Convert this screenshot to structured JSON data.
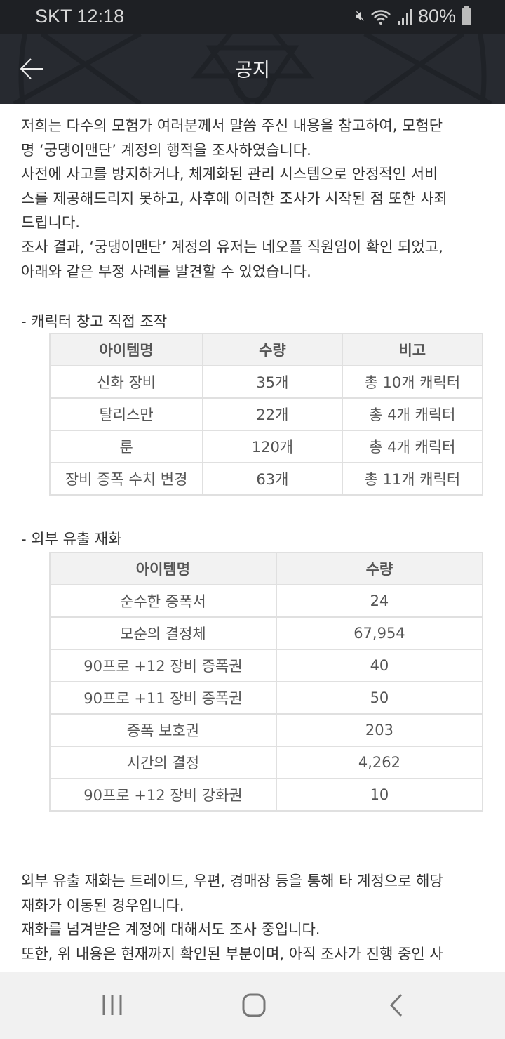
{
  "status_bar": {
    "carrier_time": "SKT 12:18",
    "battery": "80%"
  },
  "header": {
    "title": "공지"
  },
  "intro_lines": [
    "저희는 다수의 모험가 여러분께서 말씀 주신 내용을 참고하여, 모험단",
    "명 ‘궁댕이맨단’ 계정의 행적을 조사하였습니다.",
    "사전에 사고를 방지하거나, 체계화된 관리 시스템으로 안정적인 서비",
    "스를 제공해드리지 못하고, 사후에 이러한 조사가 시작된 점 또한 사죄",
    "드립니다.",
    "조사 결과, ‘궁댕이맨단’ 계정의 유저는 네오플 직원임이 확인 되었고,",
    "아래와 같은 부정 사례를 발견할 수 있었습니다."
  ],
  "section1": {
    "heading": "- 캐릭터 창고 직접 조작",
    "headers": [
      "아이템명",
      "수량",
      "비고"
    ],
    "rows": [
      [
        "신화 장비",
        "35개",
        "총 10개 캐릭터"
      ],
      [
        "탈리스만",
        "22개",
        "총 4개 캐릭터"
      ],
      [
        "룬",
        "120개",
        "총 4개 캐릭터"
      ],
      [
        "장비 증폭 수치 변경",
        "63개",
        "총 11개 캐릭터"
      ]
    ]
  },
  "section2": {
    "heading": "- 외부 유출 재화",
    "headers": [
      "아이템명",
      "수량"
    ],
    "rows": [
      [
        "순수한 증폭서",
        "24"
      ],
      [
        "모순의 결정체",
        "67,954"
      ],
      [
        "90프로 +12 장비 증폭권",
        "40"
      ],
      [
        "90프로 +11 장비 증폭권",
        "50"
      ],
      [
        "증폭 보호권",
        "203"
      ],
      [
        "시간의 결정",
        "4,262"
      ],
      [
        "90프로 +12 장비 강화권",
        "10"
      ]
    ]
  },
  "outro_lines": [
    "외부 유출 재화는 트레이드, 우편, 경매장 등을 통해 타 계정으로 해당",
    "재화가 이동된 경우입니다.",
    "재화를 넘겨받은 계정에 대해서도 조사 중입니다.",
    "또한, 위 내용은 현재까지 확인된 부분이며, 아직 조사가 진행 중인 사"
  ],
  "colors": {
    "status_bar": "#1e2024",
    "header": "#272a30",
    "table_header": "#f2f2f2",
    "nav_bar": "#f1f1f1"
  },
  "icons": [
    "mute-icon",
    "wifi-icon",
    "signal-icon",
    "battery-icon",
    "back-arrow-icon",
    "recent-apps-icon",
    "home-icon",
    "back-icon"
  ]
}
